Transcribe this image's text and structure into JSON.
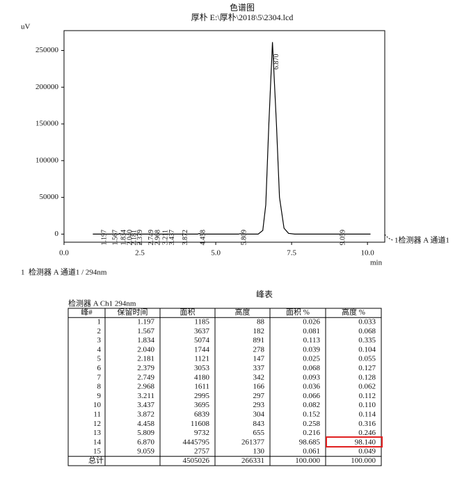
{
  "chart_data": {
    "type": "line",
    "title": "色谱图",
    "subtitle": "厚朴 E:\\厚朴\\2018\\5\\2304.lcd",
    "y_label": "uV",
    "x_label": "min",
    "legend": "1检测器 A 通道1",
    "color": "#000000",
    "x": [
      0.95,
      1.15,
      1.197,
      1.25,
      1.55,
      1.567,
      1.6,
      1.82,
      1.834,
      1.87,
      4.4,
      4.458,
      4.52,
      5.75,
      5.809,
      5.87,
      6.4,
      6.55,
      6.65,
      6.75,
      6.87,
      7.0,
      7.1,
      7.25,
      7.4,
      7.6,
      10.1
    ],
    "y": [
      0,
      0,
      88,
      0,
      0,
      182,
      0,
      0,
      891,
      0,
      0,
      843,
      0,
      0,
      655,
      0,
      0,
      5000,
      40000,
      150000,
      261377,
      150000,
      50000,
      8000,
      1000,
      0,
      0
    ],
    "peak_labels": [
      {
        "value": 1.197,
        "label": "1.197"
      },
      {
        "value": 1.567,
        "label": "1.567"
      },
      {
        "value": 1.834,
        "label": "1.834"
      },
      {
        "value": 2.04,
        "label": "2.040"
      },
      {
        "value": 2.181,
        "label": "2.181"
      },
      {
        "value": 2.379,
        "label": "2.379"
      },
      {
        "value": 2.749,
        "label": "2.749"
      },
      {
        "value": 2.968,
        "label": "2.968"
      },
      {
        "value": 3.211,
        "label": "3.211"
      },
      {
        "value": 3.437,
        "label": "3.437"
      },
      {
        "value": 3.872,
        "label": "3.872"
      },
      {
        "value": 4.458,
        "label": "4.458"
      },
      {
        "value": 5.809,
        "label": "5.809"
      },
      {
        "value": 6.87,
        "label": "6.870"
      },
      {
        "value": 9.059,
        "label": "9.059"
      }
    ],
    "xlim": [
      0,
      10.57
    ],
    "ylim": [
      -11000,
      277000
    ],
    "xticks": [
      {
        "value": 0,
        "label": "0.0"
      },
      {
        "value": 2.5,
        "label": "2.5"
      },
      {
        "value": 5,
        "label": "5.0"
      },
      {
        "value": 7.5,
        "label": "7.5"
      },
      {
        "value": 10,
        "label": "10.0"
      }
    ],
    "yticks": [
      0,
      50000,
      100000,
      150000,
      200000,
      250000
    ]
  },
  "caption": "1  检测器 A 通道1 / 294nm",
  "table": {
    "title": "峰表",
    "subtitle": "检测器 A Ch1 294nm",
    "headers": [
      "峰#",
      "保留时间",
      "面积",
      "高度",
      "面积 %",
      "高度 %"
    ],
    "rows": [
      [
        "1",
        "1.197",
        "1185",
        "88",
        "0.026",
        "0.033"
      ],
      [
        "2",
        "1.567",
        "3637",
        "182",
        "0.081",
        "0.068"
      ],
      [
        "3",
        "1.834",
        "5074",
        "891",
        "0.113",
        "0.335"
      ],
      [
        "4",
        "2.040",
        "1744",
        "278",
        "0.039",
        "0.104"
      ],
      [
        "5",
        "2.181",
        "1121",
        "147",
        "0.025",
        "0.055"
      ],
      [
        "6",
        "2.379",
        "3053",
        "337",
        "0.068",
        "0.127"
      ],
      [
        "7",
        "2.749",
        "4180",
        "342",
        "0.093",
        "0.128"
      ],
      [
        "8",
        "2.968",
        "1611",
        "166",
        "0.036",
        "0.062"
      ],
      [
        "9",
        "3.211",
        "2995",
        "297",
        "0.066",
        "0.112"
      ],
      [
        "10",
        "3.437",
        "3695",
        "293",
        "0.082",
        "0.110"
      ],
      [
        "11",
        "3.872",
        "6839",
        "304",
        "0.152",
        "0.114"
      ],
      [
        "12",
        "4.458",
        "11608",
        "843",
        "0.258",
        "0.316"
      ],
      [
        "13",
        "5.809",
        "9732",
        "655",
        "0.216",
        "0.246"
      ],
      [
        "14",
        "6.870",
        "4445795",
        "261377",
        "98.685",
        "98.140"
      ],
      [
        "15",
        "9.059",
        "2757",
        "130",
        "0.061",
        "0.049"
      ]
    ],
    "total": {
      "label": "总计",
      "values": [
        "4505026",
        "266331",
        "100.000",
        "100.000"
      ]
    }
  }
}
